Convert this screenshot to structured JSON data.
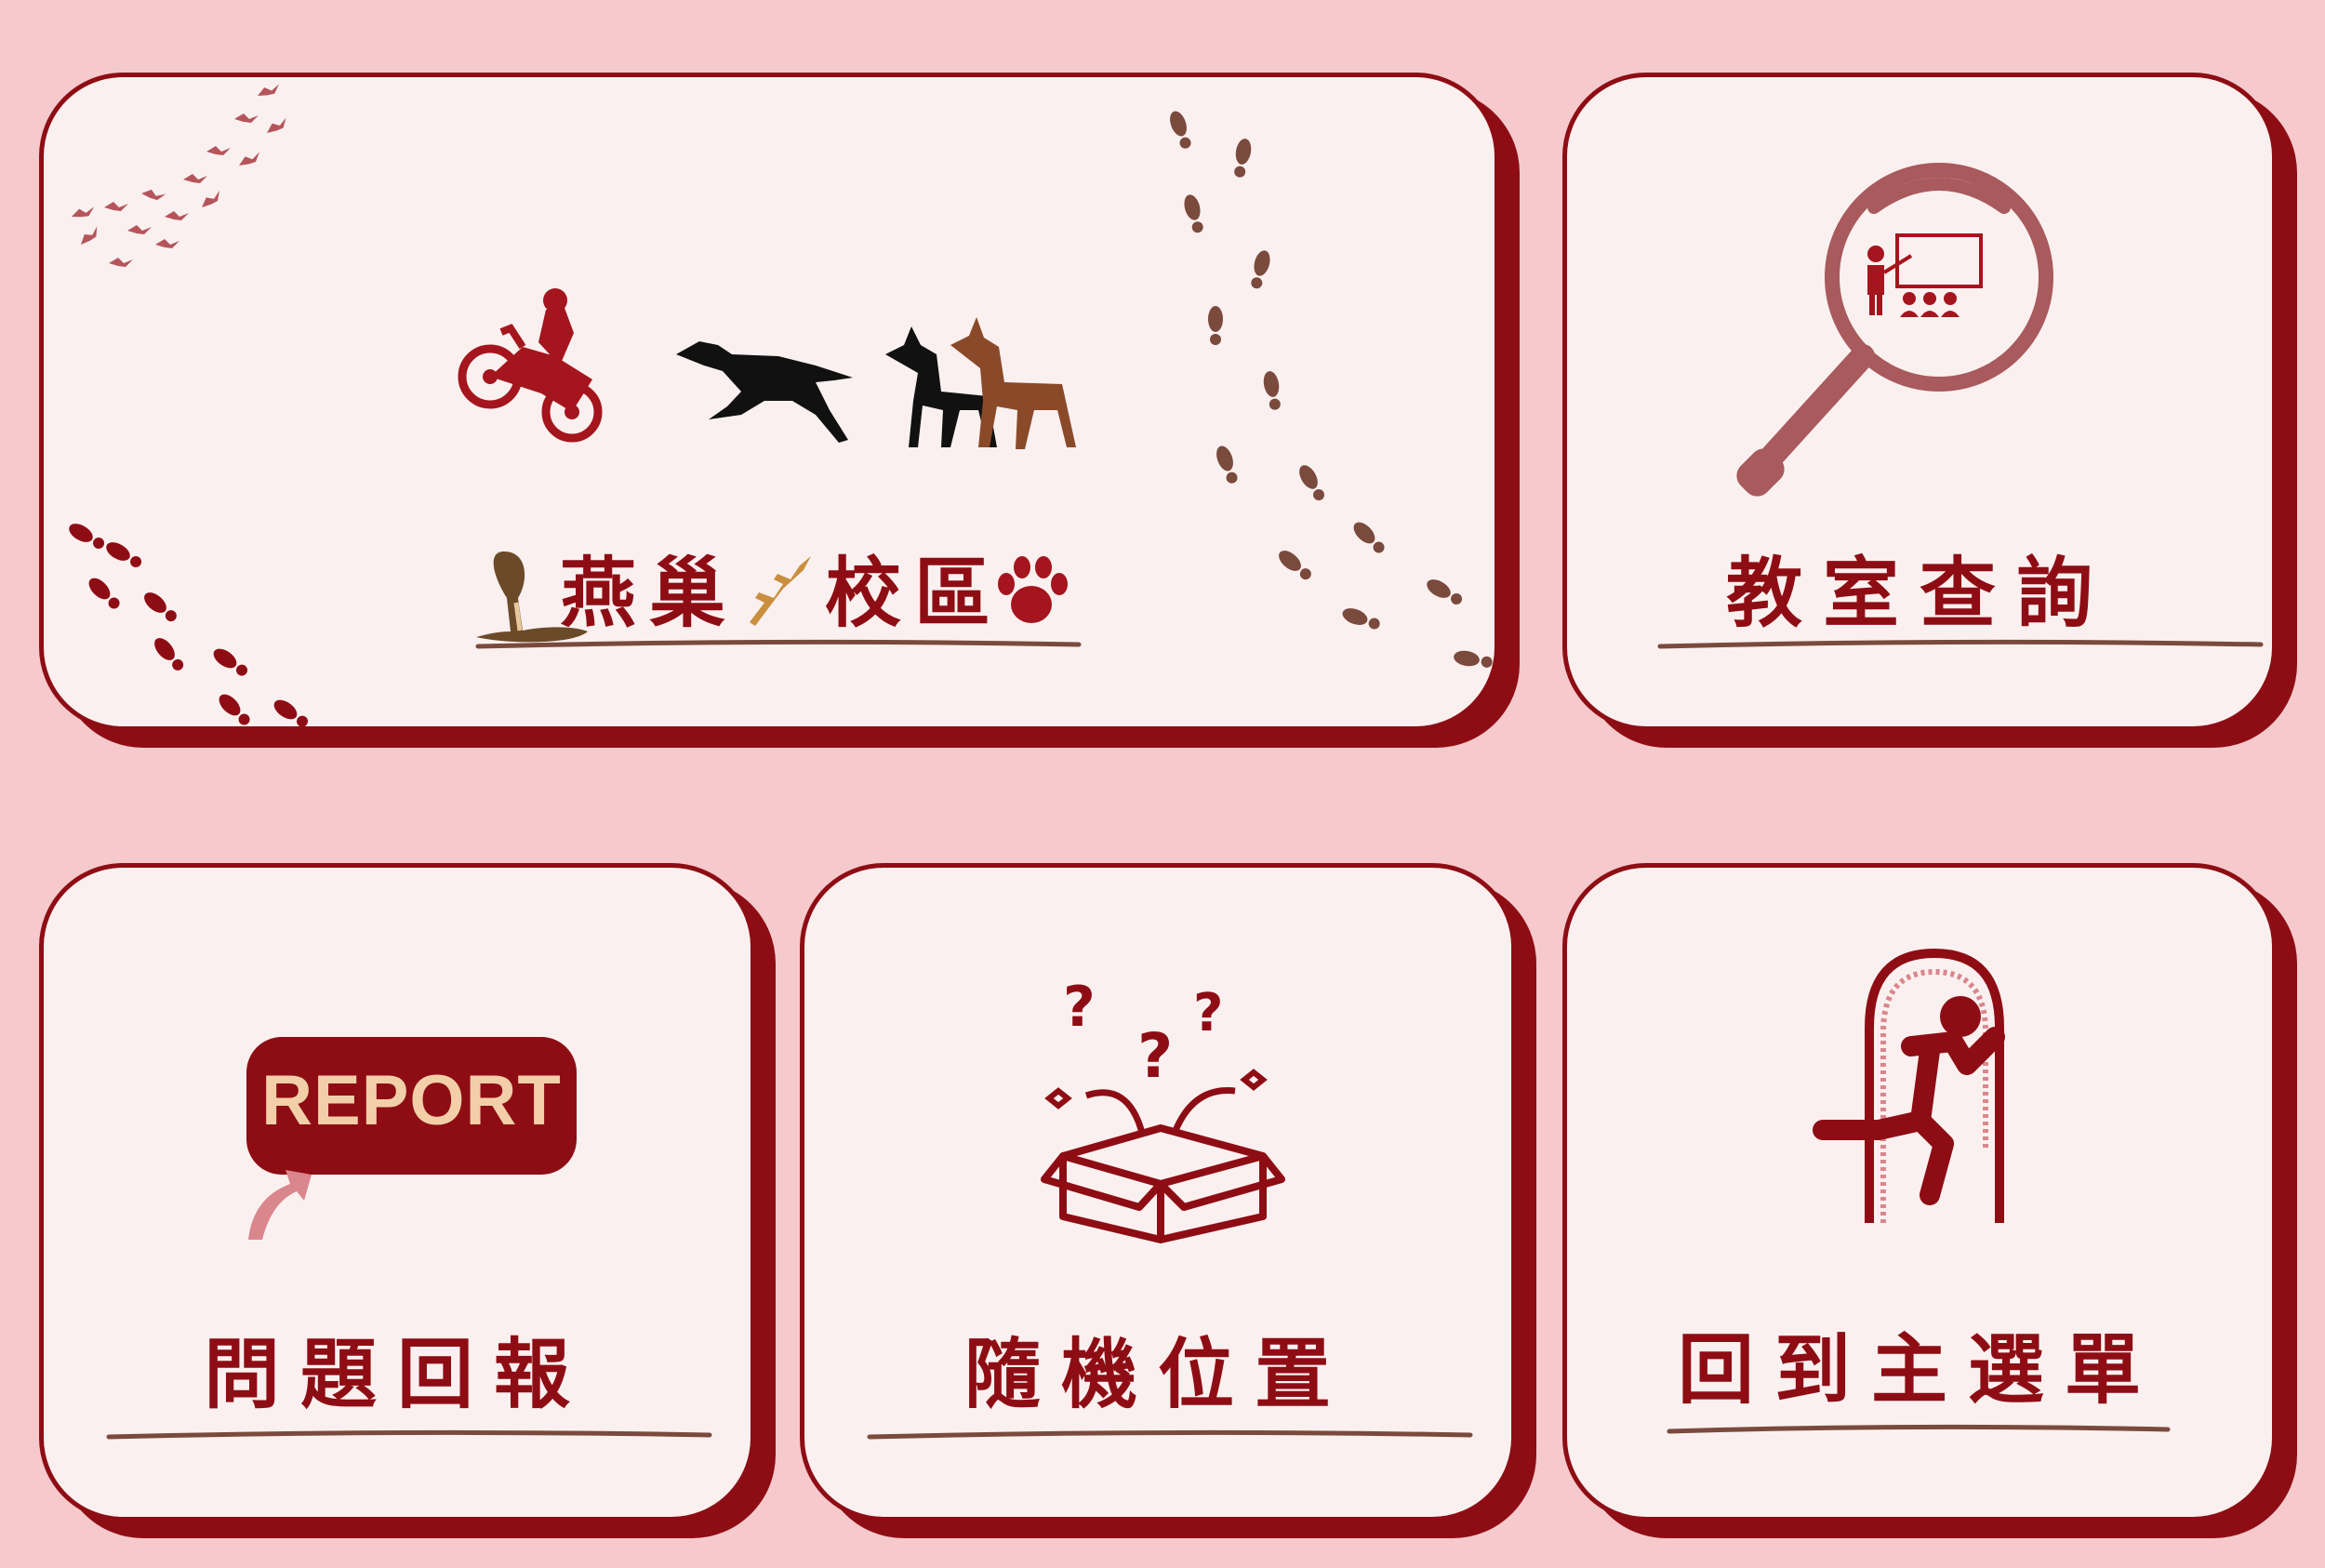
{
  "colors": {
    "background": "#f6c9cc",
    "card": "#fbf0f0",
    "accent": "#8e0d14",
    "muted": "#a85a5c",
    "footprint": "#7a4a3c"
  },
  "cards": {
    "campus": {
      "label_a": "燕巢",
      "label_b": "校區",
      "icons": [
        "motorcycle-rider-icon",
        "running-dog-icon",
        "doberman-dogs-icon",
        "cobra-icon",
        "gecko-icon",
        "paw-icon",
        "swallows-icon",
        "footprints-icon"
      ]
    },
    "classroom": {
      "label": "教室查詢",
      "icon": "magnifier-classroom-icon"
    },
    "report": {
      "label": "問題回報",
      "badge": "REPORT",
      "icon": "report-arrow-icon"
    },
    "random": {
      "label": "隨機位置",
      "icon": "mystery-box-icon"
    },
    "home": {
      "label": "回到主選單",
      "icon": "exit-door-icon"
    }
  }
}
